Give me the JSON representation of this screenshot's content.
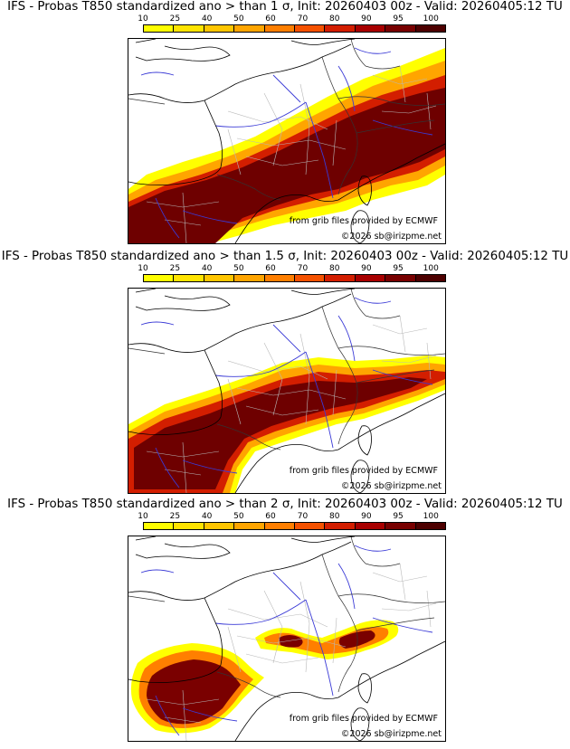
{
  "colorbar": {
    "labels": [
      "10",
      "25",
      "40",
      "50",
      "60",
      "70",
      "80",
      "90",
      "95",
      "100"
    ],
    "colors": [
      "#ffff00",
      "#ffe400",
      "#ffc600",
      "#ffa500",
      "#ff7f00",
      "#f55200",
      "#d31e00",
      "#a80000",
      "#780000",
      "#4d0000"
    ]
  },
  "panels": [
    {
      "title": "IFS - Probas T850  standardized ano > than 1 σ, Init: 20260403 00z - Valid: 20260405:12 TU",
      "provider": "from grib files provided by ECMWF",
      "copyright": "©2026 sb@irizpme.net"
    },
    {
      "title": "IFS - Probas T850  standardized ano > than 1.5 σ, Init: 20260403 00z - Valid: 20260405:12 TU",
      "provider": "from grib files provided by ECMWF",
      "copyright": "©2026 sb@irizpme.net"
    },
    {
      "title": "IFS - Probas T850  standardized ano > than 2 σ, Init: 20260403 00z - Valid: 20260405:12 TU",
      "provider": "from grib files provided by ECMWF",
      "copyright": "©2026 sb@irizpme.net"
    }
  ]
}
